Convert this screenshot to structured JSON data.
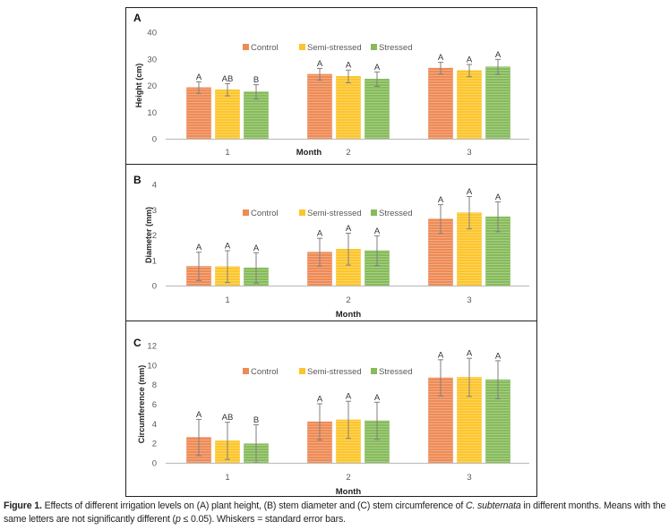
{
  "colors": {
    "Control": "#ee8a55",
    "Semi-stressed": "#fcc52b",
    "Stressed": "#86bb5a",
    "axis": "#bfbfbf",
    "tick_text": "#595959",
    "whisker": "#7f7f7f"
  },
  "chart_data": [
    {
      "type": "bar",
      "panel_label": "A",
      "title": "",
      "xlabel": "Month",
      "ylabel": "Height (cm)",
      "ylim": [
        0,
        40
      ],
      "yticks": [
        "0",
        "10",
        "20",
        "30",
        "40"
      ],
      "categories": [
        "1",
        "2",
        "3"
      ],
      "legend": [
        "Control",
        "Semi-stressed",
        "Stressed"
      ],
      "legend_position": "top-center",
      "grid": false,
      "series": [
        {
          "name": "Control",
          "values": [
            19.2,
            24.2,
            26.5
          ],
          "errors": [
            2.2,
            2.2,
            2.2
          ],
          "letters": [
            "A",
            "A",
            "A"
          ]
        },
        {
          "name": "Semi-stressed",
          "values": [
            18.4,
            23.4,
            25.6
          ],
          "errors": [
            2.3,
            2.4,
            2.3
          ],
          "letters": [
            "AB",
            "A",
            "A"
          ]
        },
        {
          "name": "Stressed",
          "values": [
            17.6,
            22.4,
            27.0
          ],
          "errors": [
            2.7,
            2.7,
            2.8
          ],
          "letters": [
            "B",
            "A",
            "A"
          ]
        }
      ]
    },
    {
      "type": "bar",
      "panel_label": "B",
      "title": "",
      "xlabel": "Month",
      "ylabel": "Diameter (mm)",
      "ylim": [
        0,
        4
      ],
      "yticks": [
        "0",
        "1",
        "2",
        "3",
        "4"
      ],
      "categories": [
        "1",
        "2",
        "3"
      ],
      "legend": [
        "Control",
        "Semi-stressed",
        "Stressed"
      ],
      "legend_position": "top-center",
      "grid": false,
      "series": [
        {
          "name": "Control",
          "values": [
            0.76,
            1.32,
            2.63
          ],
          "errors": [
            0.56,
            0.55,
            0.57
          ],
          "letters": [
            "A",
            "A",
            "A"
          ]
        },
        {
          "name": "Semi-stressed",
          "values": [
            0.75,
            1.44,
            2.88
          ],
          "errors": [
            0.63,
            0.63,
            0.64
          ],
          "letters": [
            "A",
            "A",
            "A"
          ]
        },
        {
          "name": "Stressed",
          "values": [
            0.7,
            1.38,
            2.72
          ],
          "errors": [
            0.6,
            0.59,
            0.59
          ],
          "letters": [
            "A",
            "A",
            "A"
          ]
        }
      ]
    },
    {
      "type": "bar",
      "panel_label": "C",
      "title": "",
      "xlabel": "Month",
      "ylabel": "Circumference (mm)",
      "ylim": [
        0,
        12
      ],
      "yticks": [
        "0",
        "2",
        "4",
        "6",
        "8",
        "10",
        "12"
      ],
      "categories": [
        "1",
        "2",
        "3"
      ],
      "legend": [
        "Control",
        "Semi-stressed",
        "Stressed"
      ],
      "legend_position": "top-center",
      "grid": false,
      "series": [
        {
          "name": "Control",
          "values": [
            2.6,
            4.2,
            8.7
          ],
          "errors": [
            1.85,
            1.85,
            1.85
          ],
          "letters": [
            "A",
            "A",
            "A"
          ]
        },
        {
          "name": "Semi-stressed",
          "values": [
            2.25,
            4.4,
            8.75
          ],
          "errors": [
            1.9,
            1.9,
            1.95
          ],
          "letters": [
            "AB",
            "A",
            "A"
          ]
        },
        {
          "name": "Stressed",
          "values": [
            1.95,
            4.3,
            8.5
          ],
          "errors": [
            1.95,
            1.9,
            1.95
          ],
          "letters": [
            "B",
            "A",
            "A"
          ]
        }
      ]
    }
  ],
  "caption": {
    "label": "Figure 1.",
    "text_before_italic": " Effects of different irrigation levels on (A) plant height, (B) stem diameter and (C) stem circumference of ",
    "italic": "C. subternata",
    "text_after_italic": " in different months. Means with the same letters are not significantly different (",
    "p_symbol": "p",
    "text_end": " ≤ 0.05). Whiskers = standard error bars."
  }
}
